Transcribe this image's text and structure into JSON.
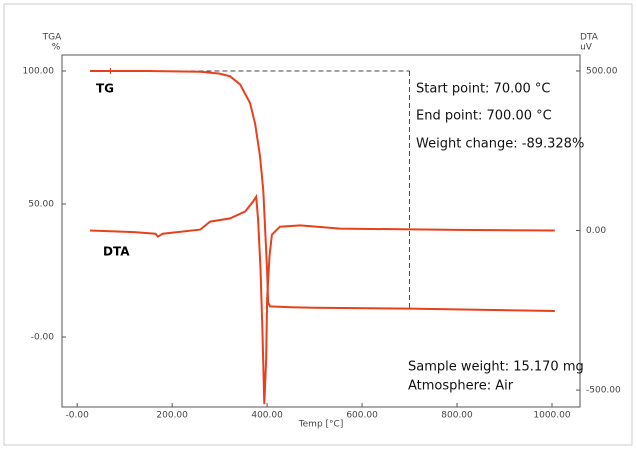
{
  "chart_data": {
    "type": "line",
    "y_label": "TGA",
    "y_unit": "%",
    "y2_label": "DTA",
    "y2_unit": "uV",
    "x_label": "Temp [°C]",
    "annotations": [
      "Start point: 70.00 °C",
      "End point: 700.00 °C",
      "Weight change: -89.328%",
      "Sample weight: 15.170 mg",
      "Atmosphere: Air"
    ],
    "xlim": [
      -32,
      1059
    ],
    "xticks": [
      {
        "value": 0,
        "label": "-0.00"
      },
      {
        "value": 200,
        "label": "200.00"
      },
      {
        "value": 400,
        "label": "400.00"
      },
      {
        "value": 600,
        "label": "600.00"
      },
      {
        "value": 800,
        "label": "800.00"
      },
      {
        "value": 1000,
        "label": "1000.00"
      }
    ],
    "ylim": [
      -26.3,
      106
    ],
    "yticks": [
      {
        "value": 0,
        "label": "-0.00"
      },
      {
        "value": 50,
        "label": "50.00"
      },
      {
        "value": 100,
        "label": "100.00"
      }
    ],
    "y2lim": [
      -553,
      550
    ],
    "y2ticks": [
      {
        "value": -500,
        "label": "-500.00"
      },
      {
        "value": 0,
        "label": "0.00"
      },
      {
        "value": 500,
        "label": "500.00"
      }
    ],
    "range_marker": {
      "x": [
        70,
        700
      ],
      "y": [
        100,
        10.67
      ]
    },
    "series": [
      {
        "name": "TG",
        "color": "#e8401c",
        "x": [
          27,
          150,
          260,
          300,
          322,
          343,
          364,
          375,
          385,
          392,
          396,
          400,
          402,
          406,
          450,
          500,
          700,
          1006
        ],
        "values": [
          100,
          100,
          99.7,
          99,
          98,
          95,
          88,
          80,
          68,
          55,
          40,
          25,
          13,
          11.5,
          11.2,
          11,
          10.7,
          9.8
        ]
      },
      {
        "name": "DTA",
        "color": "#e8401c",
        "axis": "y2",
        "x": [
          27,
          120,
          165,
          170,
          180,
          259,
          280,
          322,
          354,
          370,
          377,
          381,
          386,
          390,
          394,
          398,
          400,
          405,
          410,
          427,
          470,
          554,
          800,
          1006
        ],
        "values": [
          0,
          -5,
          -10,
          -19,
          -10,
          3,
          28,
          38,
          60,
          90,
          106,
          34,
          -120,
          -310,
          -544,
          -400,
          -216,
          -80,
          -13,
          12,
          16,
          6,
          2,
          0
        ]
      }
    ]
  }
}
